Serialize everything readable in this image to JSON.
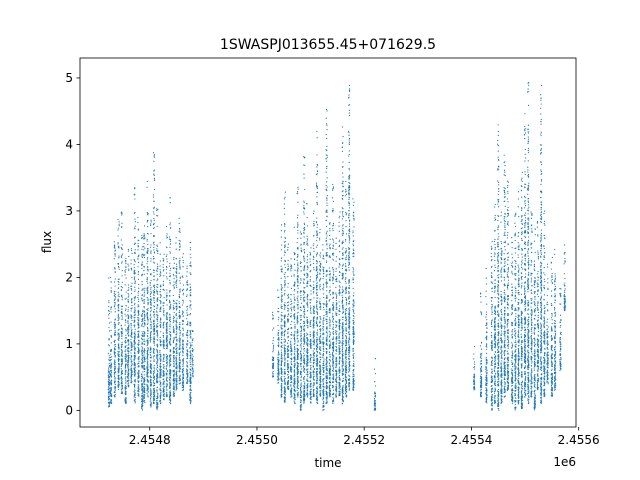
{
  "chart_data": {
    "type": "scatter",
    "title": "1SWASPJ013655.45+071629.5",
    "xlabel": "time",
    "ylabel": "flux",
    "x_offset_label": "1e6",
    "xlim": [
      2454670,
      2455595
    ],
    "ylim": [
      -0.25,
      5.3
    ],
    "x_ticks": [
      2454800,
      2455000,
      2455200,
      2455400,
      2455600
    ],
    "x_tick_labels": [
      "2.4548",
      "2.4550",
      "2.4552",
      "2.4554",
      "2.4556"
    ],
    "y_ticks": [
      0,
      1,
      2,
      3,
      4,
      5
    ],
    "y_tick_labels": [
      "0",
      "1",
      "2",
      "3",
      "4",
      "5"
    ],
    "grid": false,
    "series": [
      {
        "color": "#1f77b4",
        "marker_size": 0.6,
        "observing_nights": [
          [
            2454724,
            0.05,
            2.0,
            0.35
          ],
          [
            2454728,
            0.1,
            2.0,
            0.5
          ],
          [
            2454735,
            0.2,
            2.6,
            0.6
          ],
          [
            2454742,
            0.3,
            2.9,
            0.6
          ],
          [
            2454748,
            0.25,
            3.0,
            0.6
          ],
          [
            2454755,
            0.1,
            2.3,
            0.6
          ],
          [
            2454760,
            0.3,
            2.6,
            0.6
          ],
          [
            2454766,
            0.4,
            2.5,
            0.6
          ],
          [
            2454772,
            0.1,
            3.5,
            0.6
          ],
          [
            2454779,
            0.2,
            3.0,
            0.6
          ],
          [
            2454786,
            0.0,
            2.7,
            0.6
          ],
          [
            2454790,
            0.1,
            2.8,
            0.6
          ],
          [
            2454796,
            0.2,
            3.5,
            0.6
          ],
          [
            2454802,
            0.05,
            2.9,
            0.6
          ],
          [
            2454808,
            0.1,
            3.9,
            0.6
          ],
          [
            2454814,
            0.0,
            3.1,
            0.6
          ],
          [
            2454820,
            0.1,
            2.6,
            0.6
          ],
          [
            2454826,
            0.15,
            2.4,
            0.6
          ],
          [
            2454832,
            0.2,
            2.8,
            0.6
          ],
          [
            2454838,
            0.1,
            3.2,
            0.6
          ],
          [
            2454845,
            0.2,
            2.5,
            0.6
          ],
          [
            2454850,
            0.3,
            2.9,
            0.6
          ],
          [
            2454856,
            0.4,
            3.0,
            0.6
          ],
          [
            2454862,
            0.3,
            2.4,
            0.6
          ],
          [
            2454870,
            0.4,
            2.2,
            0.6
          ],
          [
            2454876,
            0.1,
            2.6,
            0.6
          ],
          [
            2454880,
            0.5,
            1.2,
            0.6
          ],
          [
            2455030,
            0.5,
            1.5,
            0.4
          ],
          [
            2455040,
            0.4,
            2.0,
            0.5
          ],
          [
            2455046,
            0.2,
            2.8,
            0.6
          ],
          [
            2455052,
            0.1,
            3.3,
            0.6
          ],
          [
            2455058,
            0.3,
            2.6,
            0.6
          ],
          [
            2455064,
            0.2,
            2.3,
            0.6
          ],
          [
            2455070,
            0.1,
            2.8,
            0.6
          ],
          [
            2455076,
            0.2,
            3.4,
            0.6
          ],
          [
            2455082,
            0.0,
            2.7,
            0.6
          ],
          [
            2455088,
            0.1,
            3.9,
            0.6
          ],
          [
            2455094,
            0.2,
            3.2,
            0.6
          ],
          [
            2455100,
            0.1,
            2.5,
            0.6
          ],
          [
            2455106,
            0.2,
            3.0,
            0.6
          ],
          [
            2455112,
            0.1,
            4.2,
            0.6
          ],
          [
            2455118,
            0.2,
            3.0,
            0.6
          ],
          [
            2455124,
            0.0,
            2.6,
            0.6
          ],
          [
            2455130,
            0.1,
            4.6,
            0.6
          ],
          [
            2455136,
            0.2,
            2.9,
            0.6
          ],
          [
            2455142,
            0.1,
            3.4,
            0.6
          ],
          [
            2455148,
            0.2,
            2.6,
            0.6
          ],
          [
            2455154,
            0.2,
            3.0,
            0.6
          ],
          [
            2455160,
            0.1,
            4.3,
            0.6
          ],
          [
            2455166,
            0.2,
            3.5,
            0.6
          ],
          [
            2455172,
            0.3,
            4.9,
            0.7
          ],
          [
            2455180,
            0.3,
            3.2,
            0.6
          ],
          [
            2455220,
            0.0,
            0.8,
            0.3
          ],
          [
            2455405,
            0.3,
            1.0,
            0.3
          ],
          [
            2455418,
            0.2,
            1.8,
            0.4
          ],
          [
            2455428,
            0.1,
            2.2,
            0.5
          ],
          [
            2455438,
            0.0,
            2.6,
            0.6
          ],
          [
            2455444,
            0.1,
            3.1,
            0.6
          ],
          [
            2455450,
            0.0,
            4.3,
            0.7
          ],
          [
            2455456,
            0.1,
            3.3,
            0.6
          ],
          [
            2455462,
            0.2,
            4.0,
            0.6
          ],
          [
            2455468,
            0.3,
            3.5,
            0.6
          ],
          [
            2455476,
            0.1,
            2.6,
            0.6
          ],
          [
            2455482,
            0.0,
            3.0,
            0.6
          ],
          [
            2455488,
            0.1,
            3.3,
            0.6
          ],
          [
            2455494,
            0.0,
            3.6,
            0.6
          ],
          [
            2455500,
            0.2,
            4.5,
            0.6
          ],
          [
            2455506,
            0.1,
            5.0,
            0.6
          ],
          [
            2455512,
            0.2,
            3.0,
            0.6
          ],
          [
            2455518,
            0.0,
            2.8,
            0.6
          ],
          [
            2455524,
            0.3,
            2.9,
            0.6
          ],
          [
            2455530,
            0.1,
            5.0,
            0.6
          ],
          [
            2455536,
            0.2,
            3.0,
            0.6
          ],
          [
            2455542,
            0.4,
            2.2,
            0.5
          ],
          [
            2455550,
            0.2,
            2.6,
            0.5
          ],
          [
            2455556,
            0.3,
            2.7,
            0.5
          ],
          [
            2455566,
            0.6,
            2.0,
            0.4
          ],
          [
            2455574,
            1.5,
            2.6,
            0.3
          ]
        ]
      }
    ]
  }
}
